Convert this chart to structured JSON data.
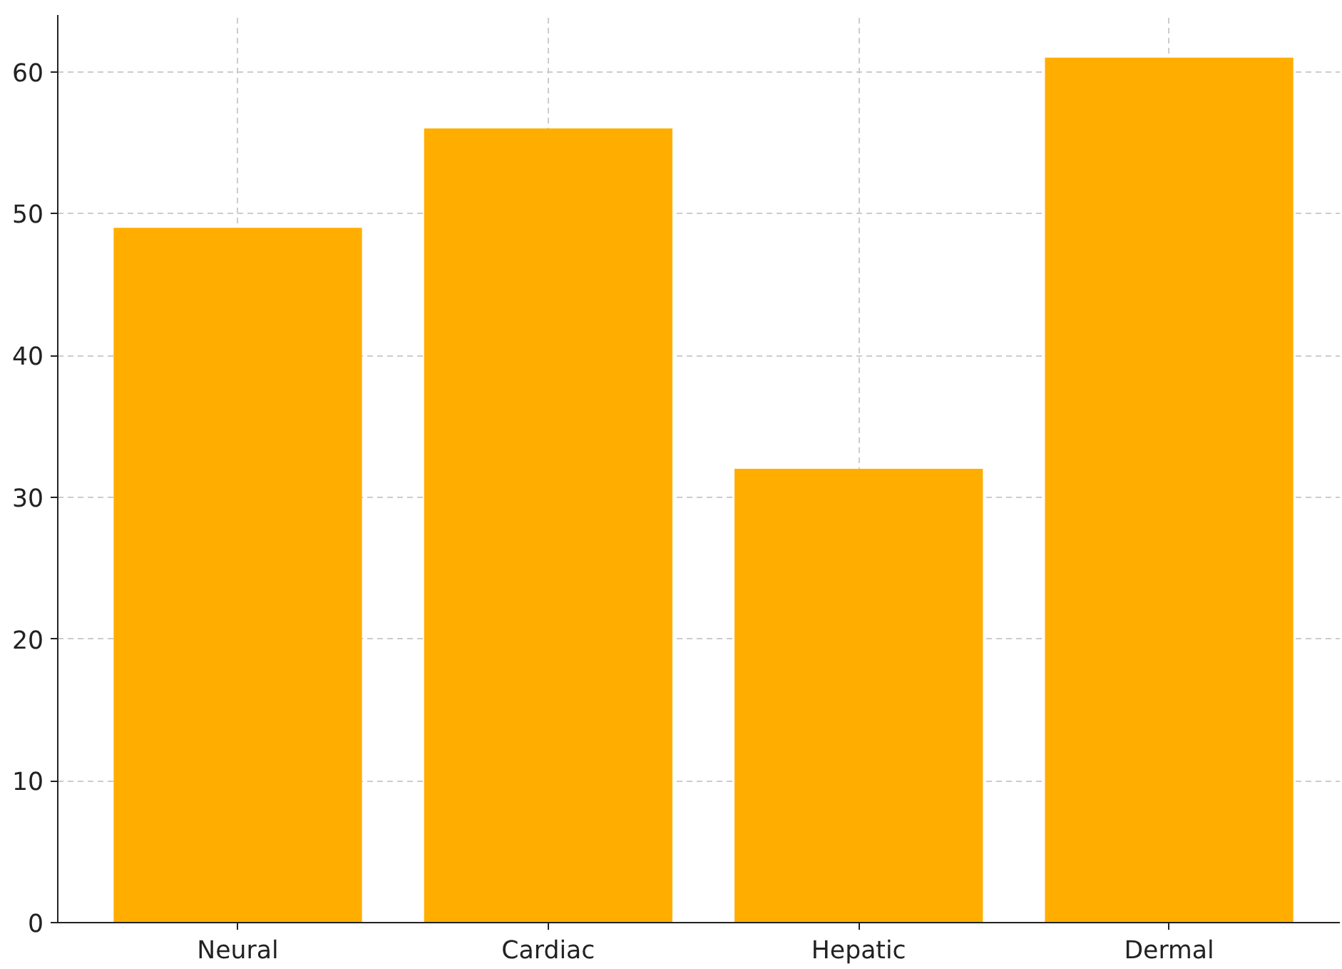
{
  "chart_data": {
    "type": "bar",
    "categories": [
      "Neural",
      "Cardiac",
      "Hepatic",
      "Dermal"
    ],
    "values": [
      49,
      56,
      32,
      61
    ],
    "color": "#ffae00",
    "ylim": [
      0,
      64
    ],
    "yticks": [
      0,
      10,
      20,
      30,
      40,
      50,
      60
    ],
    "grid": true
  }
}
